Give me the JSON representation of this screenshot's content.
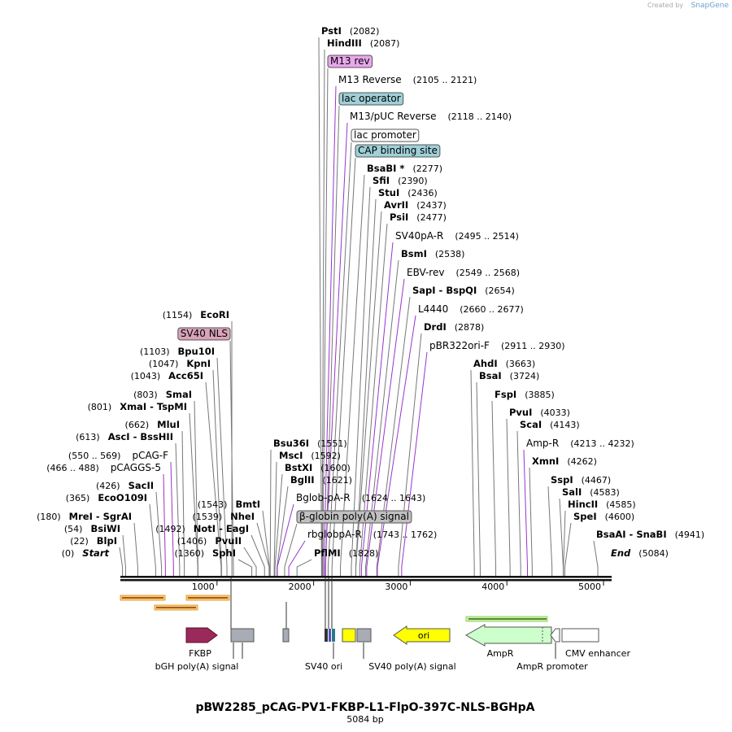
{
  "header": {
    "credit": "Created by",
    "brand": "SnapGene"
  },
  "labels": [
    {
      "name": "PstI",
      "site": "(2082)",
      "kind": "enzyme"
    },
    {
      "name": "HindIII",
      "site": "(2087)",
      "kind": "enzyme"
    },
    {
      "name": "M13 rev",
      "kind": "feature",
      "color": "#e8a6ec"
    },
    {
      "name": "M13 Reverse",
      "site": "(2105 .. 2121)",
      "kind": "primer"
    },
    {
      "name": "lac operator",
      "kind": "feature",
      "color": "#9fd0d8"
    },
    {
      "name": "M13/pUC Reverse",
      "site": "(2118 .. 2140)",
      "kind": "primer"
    },
    {
      "name": "lac promoter",
      "kind": "feature",
      "color": "#ffffff"
    },
    {
      "name": "CAP binding site",
      "kind": "feature",
      "color": "#9fd0d8"
    },
    {
      "name": "BsaBI *",
      "site": "(2277)",
      "kind": "enzyme"
    },
    {
      "name": "SfiI",
      "site": "(2390)",
      "kind": "enzyme"
    },
    {
      "name": "StuI",
      "site": "(2436)",
      "kind": "enzyme"
    },
    {
      "name": "AvrII",
      "site": "(2437)",
      "kind": "enzyme"
    },
    {
      "name": "PsiI",
      "site": "(2477)",
      "kind": "enzyme"
    },
    {
      "name": "SV40pA-R",
      "site": "(2495 .. 2514)",
      "kind": "primer"
    },
    {
      "name": "BsmI",
      "site": "(2538)",
      "kind": "enzyme"
    },
    {
      "name": "EBV-rev",
      "site": "(2549 .. 2568)",
      "kind": "primer"
    },
    {
      "name": "SapI - BspQI",
      "site": "(2654)",
      "kind": "enzyme"
    },
    {
      "name": "L4440",
      "site": "(2660 .. 2677)",
      "kind": "primer"
    },
    {
      "name": "DrdI",
      "site": "(2878)",
      "kind": "enzyme"
    },
    {
      "name": "pBR322ori-F",
      "site": "(2911 .. 2930)",
      "kind": "primer"
    },
    {
      "name": "AhdI",
      "site": "(3663)",
      "kind": "enzyme"
    },
    {
      "name": "BsaI",
      "site": "(3724)",
      "kind": "enzyme"
    },
    {
      "name": "FspI",
      "site": "(3885)",
      "kind": "enzyme"
    },
    {
      "name": "PvuI",
      "site": "(4033)",
      "kind": "enzyme"
    },
    {
      "name": "ScaI",
      "site": "(4143)",
      "kind": "enzyme"
    },
    {
      "name": "Amp-R",
      "site": "(4213 .. 4232)",
      "kind": "primer"
    },
    {
      "name": "XmnI",
      "site": "(4262)",
      "kind": "enzyme"
    },
    {
      "name": "SspI",
      "site": "(4467)",
      "kind": "enzyme"
    },
    {
      "name": "SalI",
      "site": "(4583)",
      "kind": "enzyme"
    },
    {
      "name": "HincII",
      "site": "(4585)",
      "kind": "enzyme"
    },
    {
      "name": "SpeI",
      "site": "(4600)",
      "kind": "enzyme"
    },
    {
      "name": "BsaAI - SnaBI",
      "site": "(4941)",
      "kind": "enzyme"
    },
    {
      "name": "End",
      "site": "(5084)",
      "kind": "end"
    },
    {
      "name": "EcoRI",
      "site": "(1154)",
      "kind": "enzyme"
    },
    {
      "name": "SV40 NLS",
      "kind": "feature",
      "color": "#d9a3b9"
    },
    {
      "name": "Bpu10I",
      "site": "(1103)",
      "kind": "enzyme"
    },
    {
      "name": "KpnI",
      "site": "(1047)",
      "kind": "enzyme"
    },
    {
      "name": "Acc65I",
      "site": "(1043)",
      "kind": "enzyme"
    },
    {
      "name": "SmaI",
      "site": "(803)",
      "kind": "enzyme"
    },
    {
      "name": "XmaI - TspMI",
      "site": "(801)",
      "kind": "enzyme"
    },
    {
      "name": "MluI",
      "site": "(662)",
      "kind": "enzyme"
    },
    {
      "name": "AscI - BssHII",
      "site": "(613)",
      "kind": "enzyme"
    },
    {
      "name": "pCAG-F",
      "site": "(550 .. 569)",
      "kind": "primer"
    },
    {
      "name": "pCAGGS-5",
      "site": "(466 .. 488)",
      "kind": "primer"
    },
    {
      "name": "SacII",
      "site": "(426)",
      "kind": "enzyme"
    },
    {
      "name": "EcoO109I",
      "site": "(365)",
      "kind": "enzyme"
    },
    {
      "name": "MreI - SgrAI",
      "site": "(180)",
      "kind": "enzyme"
    },
    {
      "name": "BsiWI",
      "site": "(54)",
      "kind": "enzyme"
    },
    {
      "name": "BlpI",
      "site": "(22)",
      "kind": "enzyme"
    },
    {
      "name": "Start",
      "site": "(0)",
      "kind": "end"
    },
    {
      "name": "BmtI",
      "site": "(1543)",
      "kind": "enzyme"
    },
    {
      "name": "NheI",
      "site": "(1539)",
      "kind": "enzyme"
    },
    {
      "name": "NotI - EagI",
      "site": "(1492)",
      "kind": "enzyme"
    },
    {
      "name": "PvuII",
      "site": "(1406)",
      "kind": "enzyme"
    },
    {
      "name": "SphI",
      "site": "(1360)",
      "kind": "enzyme"
    },
    {
      "name": "Bsu36I",
      "site": "(1551)",
      "kind": "enzyme"
    },
    {
      "name": "MscI",
      "site": "(1592)",
      "kind": "enzyme"
    },
    {
      "name": "BstXI",
      "site": "(1600)",
      "kind": "enzyme"
    },
    {
      "name": "BglII",
      "site": "(1621)",
      "kind": "enzyme"
    },
    {
      "name": "Bglob-pA-R",
      "site": "(1624 .. 1643)",
      "kind": "primer"
    },
    {
      "name": "β-globin poly(A) signal",
      "kind": "feature",
      "color": "#c0c0c0"
    },
    {
      "name": "rbglobpA-R",
      "site": "(1743 .. 1762)",
      "kind": "primer"
    },
    {
      "name": "PflMI",
      "site": "(1828)",
      "kind": "enzyme"
    }
  ],
  "ruler": {
    "ticks": [
      1000,
      2000,
      3000,
      4000,
      5000
    ]
  },
  "features": {
    "fkbp": "FKBP",
    "bgh": "bGH poly(A) signal",
    "sv40ori": "SV40 ori",
    "sv40pa": "SV40 poly(A) signal",
    "ori": "ori",
    "ampr": "AmpR",
    "amprprom": "AmpR promoter",
    "cmv": "CMV enhancer"
  },
  "title": "pBW2285_pCAG-PV1-FKBP-L1-FlpO-397C-NLS-BGHpA",
  "subtitle": "5084 bp"
}
